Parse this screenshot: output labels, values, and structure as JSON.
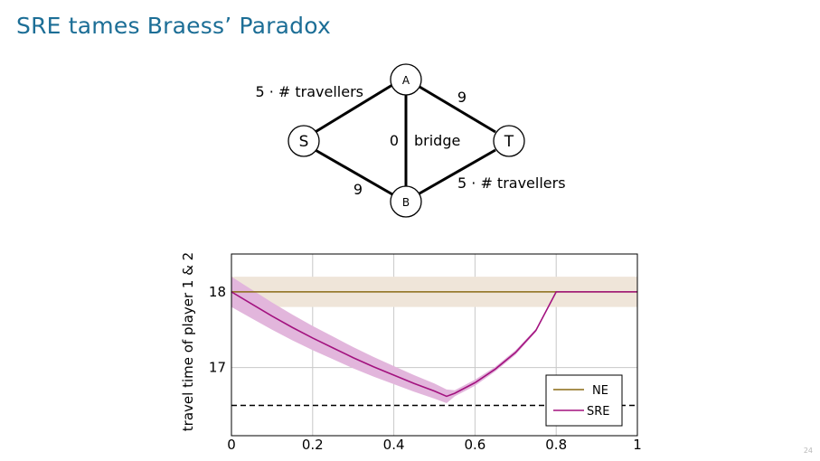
{
  "slide": {
    "title": "SRE tames Braess’ Paradox",
    "page_number": "24"
  },
  "network": {
    "nodes": [
      {
        "id": "S",
        "label": "S"
      },
      {
        "id": "A",
        "label": "A"
      },
      {
        "id": "B",
        "label": "B"
      },
      {
        "id": "T",
        "label": "T"
      }
    ],
    "edges": [
      {
        "from": "S",
        "to": "A",
        "label": "5 · # travellers"
      },
      {
        "from": "A",
        "to": "T",
        "label": "9"
      },
      {
        "from": "S",
        "to": "B",
        "label": "9"
      },
      {
        "from": "B",
        "to": "T",
        "label": "5 · # travellers"
      },
      {
        "from": "A",
        "to": "B",
        "label": "0",
        "extra_label": "bridge"
      }
    ]
  },
  "chart_data": {
    "type": "line",
    "ylabel": "travel time of player 1 & 2",
    "xlim": [
      0,
      1
    ],
    "ylim": [
      16.1,
      18.5
    ],
    "xticks": [
      "0",
      "0.2",
      "0.4",
      "0.6",
      "0.8",
      "1"
    ],
    "xtick_values": [
      0,
      0.2,
      0.4,
      0.6,
      0.8,
      1
    ],
    "yticks": [
      "17",
      "18"
    ],
    "ytick_values": [
      17,
      18
    ],
    "grid": true,
    "legend_position": "bottom-right",
    "reference_line": {
      "y": 16.5,
      "style": "dashed"
    },
    "series": [
      {
        "name": "NE",
        "color": "#8a6a14",
        "band_color": "#efe5d9",
        "x": [
          0,
          1
        ],
        "y": [
          18,
          18
        ],
        "band": [
          0.2,
          0.2
        ]
      },
      {
        "name": "SRE",
        "color": "#a3127f",
        "band_color": "#e2b6dc",
        "x": [
          0,
          0.05,
          0.1,
          0.15,
          0.2,
          0.25,
          0.3,
          0.35,
          0.4,
          0.45,
          0.5,
          0.53,
          0.55,
          0.6,
          0.65,
          0.7,
          0.75,
          0.8,
          0.85,
          0.9,
          0.95,
          1
        ],
        "y": [
          18.0,
          17.84,
          17.68,
          17.53,
          17.39,
          17.26,
          17.13,
          17.01,
          16.9,
          16.79,
          16.69,
          16.62,
          16.66,
          16.8,
          16.98,
          17.2,
          17.49,
          18.0,
          18.0,
          18.0,
          18.0,
          18.0
        ],
        "band": [
          0.2,
          0.19,
          0.18,
          0.17,
          0.16,
          0.15,
          0.14,
          0.13,
          0.12,
          0.11,
          0.1,
          0.09,
          0.04,
          0.04,
          0.03,
          0.03,
          0.02,
          0.01,
          0,
          0,
          0,
          0
        ]
      }
    ]
  }
}
